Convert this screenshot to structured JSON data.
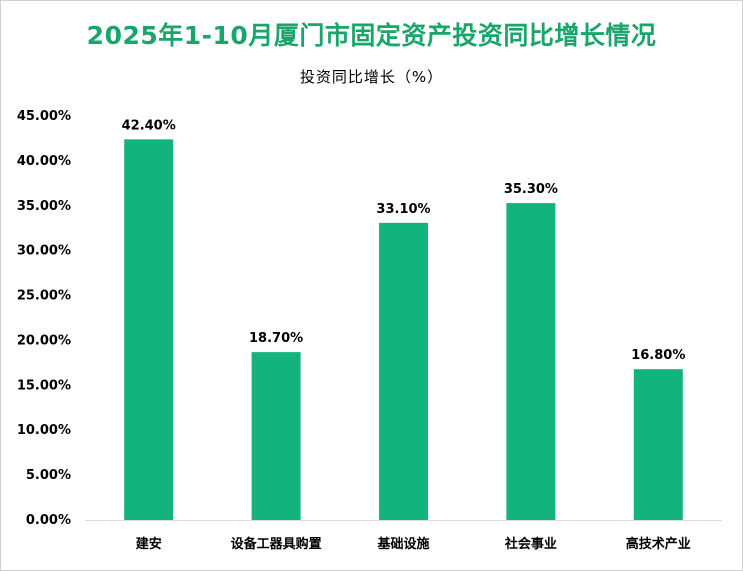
{
  "chart_data": {
    "type": "bar",
    "title": "2025年1-10月厦门市固定资产投资同比增长情况",
    "subtitle": "投资同比增长（%）",
    "categories": [
      "建安",
      "设备工器具购置",
      "基础设施",
      "社会事业",
      "高技术产业"
    ],
    "values": [
      42.4,
      18.7,
      33.1,
      35.3,
      16.8
    ],
    "data_labels": [
      "42.40%",
      "18.70%",
      "33.10%",
      "35.30%",
      "16.80%"
    ],
    "yticks": [
      "0.00%",
      "5.00%",
      "10.00%",
      "15.00%",
      "20.00%",
      "25.00%",
      "30.00%",
      "35.00%",
      "40.00%",
      "45.00%"
    ],
    "ylim": [
      0,
      45
    ],
    "grid": false,
    "bar_color": "#13b47c"
  },
  "colors": {
    "title": "#1aa66a",
    "bar": "#13b47c",
    "axis": "#d9d9d9"
  }
}
